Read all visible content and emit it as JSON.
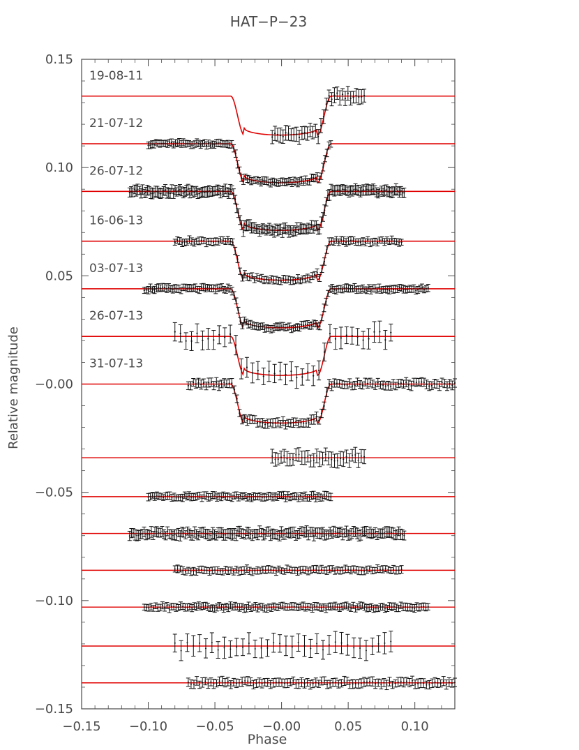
{
  "chart_data": {
    "type": "scatter",
    "title": "HAT−P−23",
    "xlabel": "Phase",
    "ylabel": "Relative magnitude",
    "xlim": [
      -0.15,
      0.13
    ],
    "ylim": [
      -0.15,
      0.15
    ],
    "x_ticks": [
      -0.15,
      -0.1,
      -0.05,
      0.0,
      0.05,
      0.1
    ],
    "x_tick_labels": [
      "−0.15",
      "−0.10",
      "−0.05",
      "−0.00",
      "0.05",
      "0.10"
    ],
    "y_ticks": [
      0.15,
      0.1,
      0.05,
      0.0,
      -0.05,
      -0.1,
      -0.15
    ],
    "y_tick_labels": [
      "0.15",
      "0.10",
      "0.05",
      "−0.00",
      "−0.05",
      "−0.10",
      "−0.15"
    ],
    "grid": false,
    "colors": {
      "model": "#e00000",
      "data": "#111111",
      "axis": "#4a4a4a"
    },
    "transit_model": {
      "ingress_start": -0.038,
      "full_start": -0.028,
      "full_end": 0.027,
      "egress_end": 0.037
    },
    "series": [
      {
        "name": "19-08-11",
        "offset": 0.133,
        "depth": 0.018,
        "x_range": [
          -0.007,
          0.062
        ],
        "n_points": 35,
        "error": 0.0035,
        "residual_offset": -0.034,
        "residual_x_range": [
          -0.007,
          0.062
        ],
        "residual_error": 0.0035
      },
      {
        "name": "21-07-12",
        "offset": 0.111,
        "depth": 0.018,
        "x_range": [
          -0.1,
          0.037
        ],
        "n_points": 95,
        "error": 0.0018,
        "residual_offset": -0.052,
        "residual_x_range": [
          -0.1,
          0.037
        ],
        "residual_error": 0.0018
      },
      {
        "name": "26-07-12",
        "offset": 0.089,
        "depth": 0.018,
        "x_range": [
          -0.114,
          0.092
        ],
        "n_points": 170,
        "error": 0.0025,
        "residual_offset": -0.069,
        "residual_x_range": [
          -0.114,
          0.092
        ],
        "residual_error": 0.0025
      },
      {
        "name": "16-06-13",
        "offset": 0.066,
        "depth": 0.018,
        "x_range": [
          -0.08,
          0.09
        ],
        "n_points": 95,
        "error": 0.0018,
        "residual_offset": -0.086,
        "residual_x_range": [
          -0.08,
          0.09
        ],
        "residual_error": 0.0018
      },
      {
        "name": "03-07-13",
        "offset": 0.044,
        "depth": 0.018,
        "x_range": [
          -0.103,
          0.11
        ],
        "n_points": 140,
        "error": 0.0018,
        "residual_offset": -0.103,
        "residual_x_range": [
          -0.103,
          0.11
        ],
        "residual_error": 0.0018
      },
      {
        "name": "26-07-13",
        "offset": 0.022,
        "depth": 0.018,
        "x_range": [
          -0.08,
          0.082
        ],
        "n_points": 40,
        "error": 0.005,
        "residual_offset": -0.121,
        "residual_x_range": [
          -0.08,
          0.082
        ],
        "residual_error": 0.005
      },
      {
        "name": "31-07-13",
        "offset": 0.0,
        "depth": 0.018,
        "x_range": [
          -0.07,
          0.13
        ],
        "n_points": 105,
        "error": 0.0022,
        "residual_offset": -0.138,
        "residual_x_range": [
          -0.07,
          0.13
        ],
        "residual_error": 0.0022
      }
    ]
  }
}
